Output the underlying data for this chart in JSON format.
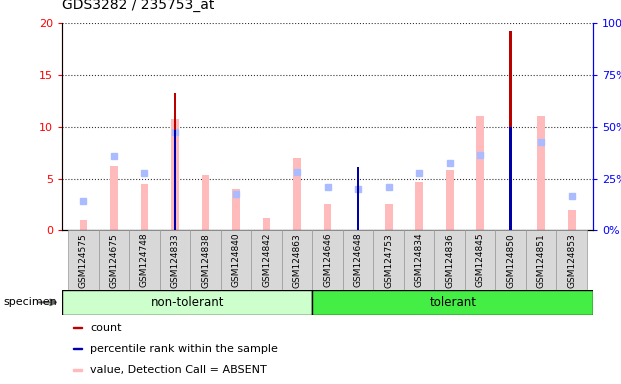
{
  "title": "GDS3282 / 235753_at",
  "samples": [
    "GSM124575",
    "GSM124675",
    "GSM124748",
    "GSM124833",
    "GSM124838",
    "GSM124840",
    "GSM124842",
    "GSM124863",
    "GSM124646",
    "GSM124648",
    "GSM124753",
    "GSM124834",
    "GSM124836",
    "GSM124845",
    "GSM124850",
    "GSM124851",
    "GSM124853"
  ],
  "sample_labels": [
    "24575",
    "24675",
    "24748",
    "24833",
    "24838",
    "24840",
    "24842",
    "24863",
    "24646",
    "24648",
    "24753",
    "24834",
    "24836",
    "24845",
    "24850",
    "24851",
    "24853"
  ],
  "non_tolerant_count": 8,
  "tolerant_count": 9,
  "count_values": [
    0,
    0,
    0,
    13.3,
    0,
    0,
    0,
    0,
    0,
    6.0,
    0,
    0,
    0,
    0,
    19.2,
    0,
    0
  ],
  "percentile_values": [
    0,
    0,
    0,
    9.7,
    0,
    0,
    0,
    0,
    0,
    6.1,
    0,
    0,
    0,
    0,
    10.0,
    0,
    0
  ],
  "value_absent": [
    1.0,
    6.2,
    4.5,
    10.7,
    5.3,
    4.0,
    1.2,
    7.0,
    2.5,
    0,
    2.5,
    4.7,
    5.8,
    11.0,
    0,
    11.0,
    2.0
  ],
  "rank_absent": [
    2.8,
    7.2,
    5.5,
    9.5,
    0,
    3.5,
    0,
    5.6,
    4.2,
    4.0,
    4.2,
    5.5,
    6.5,
    7.3,
    0,
    8.5,
    3.3
  ],
  "ylim_left": [
    0,
    20
  ],
  "ylim_right": [
    0,
    100
  ],
  "yticks_left": [
    0,
    5,
    10,
    15,
    20
  ],
  "yticks_right": [
    0,
    25,
    50,
    75,
    100
  ],
  "color_count": "#bb0000",
  "color_percentile": "#0000aa",
  "color_value_absent": "#ffbbbb",
  "color_rank_absent": "#aabbff",
  "color_non_tolerant_bg": "#ccffcc",
  "color_tolerant_bg": "#44ee44",
  "bar_width": 0.32,
  "plot_bg": "#ffffff"
}
